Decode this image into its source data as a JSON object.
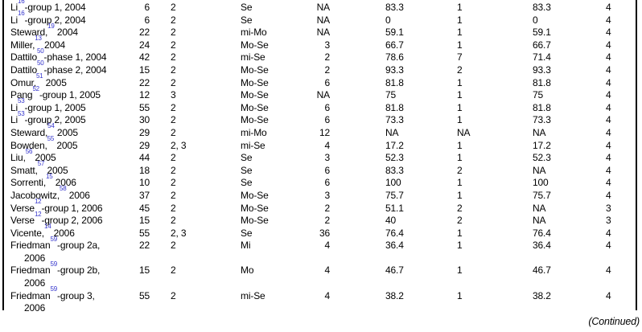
{
  "page": {
    "continued_label": "(Continued)",
    "background_color": "#ffffff",
    "text_color": "#000000",
    "citation_link_color": "#3333cc"
  },
  "table": {
    "rows": [
      {
        "study": {
          "pre": "Li",
          "ref": "16",
          "post": "-group 1, 2004",
          "line2": ""
        },
        "cells": [
          "6",
          "2",
          "Se",
          "NA",
          "83.3",
          "1",
          "83.3",
          "4"
        ]
      },
      {
        "study": {
          "pre": "Li",
          "ref": "16",
          "post": "-group 2, 2004",
          "line2": ""
        },
        "cells": [
          "6",
          "2",
          "Se",
          "NA",
          "0",
          "1",
          "0",
          "4"
        ]
      },
      {
        "study": {
          "pre": "Steward,",
          "ref": "19",
          "post": " 2004",
          "line2": ""
        },
        "cells": [
          "22",
          "2",
          "mi-Mo",
          "NA",
          "59.1",
          "1",
          "59.1",
          "4"
        ]
      },
      {
        "study": {
          "pre": "Miller,",
          "ref": "13",
          "post": " 2004",
          "line2": ""
        },
        "cells": [
          "24",
          "2",
          "Mo-Se",
          "3",
          "66.7",
          "1",
          "66.7",
          "4"
        ]
      },
      {
        "study": {
          "pre": "Dattilo",
          "ref": "50",
          "post": "-phase 1, 2004",
          "line2": ""
        },
        "cells": [
          "42",
          "2",
          "mi-Se",
          "2",
          "78.6",
          "7",
          "71.4",
          "4"
        ]
      },
      {
        "study": {
          "pre": "Dattilo",
          "ref": "50",
          "post": "-phase 2, 2004",
          "line2": ""
        },
        "cells": [
          "15",
          "2",
          "Mo-Se",
          "2",
          "93.3",
          "2",
          "93.3",
          "4"
        ]
      },
      {
        "study": {
          "pre": "Omur,",
          "ref": "51",
          "post": " 2005",
          "line2": ""
        },
        "cells": [
          "22",
          "2",
          "Mo-Se",
          "6",
          "81.8",
          "1",
          "81.8",
          "4"
        ]
      },
      {
        "study": {
          "pre": "Pang",
          "ref": "52",
          "post": "-group 1, 2005",
          "line2": ""
        },
        "cells": [
          "12",
          "3",
          "Mo-Se",
          "NA",
          "75",
          "1",
          "75",
          "4"
        ]
      },
      {
        "study": {
          "pre": "Li",
          "ref": "53",
          "post": "-group 1, 2005",
          "line2": ""
        },
        "cells": [
          "55",
          "2",
          "Mo-Se",
          "6",
          "81.8",
          "1",
          "81.8",
          "4"
        ]
      },
      {
        "study": {
          "pre": "Li",
          "ref": "53",
          "post": "-group 2, 2005",
          "line2": ""
        },
        "cells": [
          "30",
          "2",
          "Mo-Se",
          "6",
          "73.3",
          "1",
          "73.3",
          "4"
        ]
      },
      {
        "study": {
          "pre": "Steward,",
          "ref": "54",
          "post": " 2005",
          "line2": ""
        },
        "cells": [
          "29",
          "2",
          "mi-Mo",
          "12",
          "NA",
          "NA",
          "NA",
          "4"
        ]
      },
      {
        "study": {
          "pre": "Bowden,",
          "ref": "55",
          "post": " 2005",
          "line2": ""
        },
        "cells": [
          "29",
          "2, 3",
          "mi-Se",
          "4",
          "17.2",
          "1",
          "17.2",
          "4"
        ]
      },
      {
        "study": {
          "pre": "Liu,",
          "ref": "56",
          "post": " 2005",
          "line2": ""
        },
        "cells": [
          "44",
          "2",
          "Se",
          "3",
          "52.3",
          "1",
          "52.3",
          "4"
        ]
      },
      {
        "study": {
          "pre": "Smatt,",
          "ref": "57",
          "post": " 2005",
          "line2": ""
        },
        "cells": [
          "18",
          "2",
          "Se",
          "6",
          "83.3",
          "2",
          "NA",
          "4"
        ]
      },
      {
        "study": {
          "pre": "Sorrenti,",
          "ref": "15",
          "post": " 2006",
          "line2": ""
        },
        "cells": [
          "10",
          "2",
          "Se",
          "6",
          "100",
          "1",
          "100",
          "4"
        ]
      },
      {
        "study": {
          "pre": "Jacobowitz,",
          "ref": "58",
          "post": " 2006",
          "line2": ""
        },
        "cells": [
          "37",
          "2",
          "Mo-Se",
          "3",
          "75.7",
          "1",
          "75.7",
          "4"
        ]
      },
      {
        "study": {
          "pre": "Verse",
          "ref": "12",
          "post": "-group 1, 2006",
          "line2": ""
        },
        "cells": [
          "45",
          "2",
          "Mo-Se",
          "2",
          "51.1",
          "2",
          "NA",
          "3"
        ]
      },
      {
        "study": {
          "pre": "Verse",
          "ref": "12",
          "post": "-group 2, 2006",
          "line2": ""
        },
        "cells": [
          "15",
          "2",
          "Mo-Se",
          "2",
          "40",
          "2",
          "NA",
          "3"
        ]
      },
      {
        "study": {
          "pre": "Vicente,",
          "ref": "14",
          "post": " 2006",
          "line2": ""
        },
        "cells": [
          "55",
          "2, 3",
          "Se",
          "36",
          "76.4",
          "1",
          "76.4",
          "4"
        ]
      },
      {
        "study": {
          "pre": "Friedman",
          "ref": "59",
          "post": "-group 2a,",
          "line2": "2006"
        },
        "cells": [
          "22",
          "2",
          "Mi",
          "4",
          "36.4",
          "1",
          "36.4",
          "4"
        ]
      },
      {
        "study": {
          "pre": "Friedman",
          "ref": "59",
          "post": "-group 2b,",
          "line2": "2006"
        },
        "cells": [
          "15",
          "2",
          "Mo",
          "4",
          "46.7",
          "1",
          "46.7",
          "4"
        ]
      },
      {
        "study": {
          "pre": "Friedman",
          "ref": "59",
          "post": "-group 3,",
          "line2": "2006"
        },
        "cells": [
          "55",
          "2",
          "mi-Se",
          "4",
          "38.2",
          "1",
          "38.2",
          "4"
        ]
      }
    ]
  }
}
